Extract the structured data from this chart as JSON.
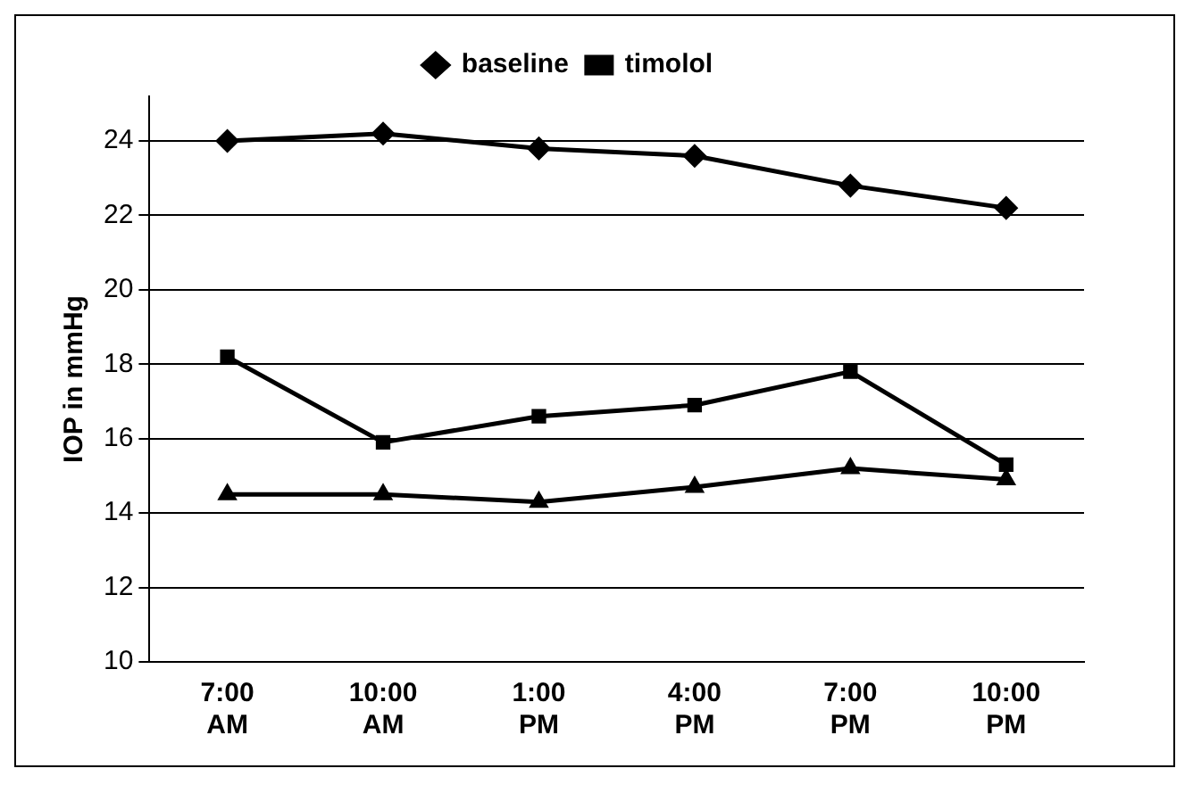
{
  "chart_data": {
    "type": "line",
    "ylabel": "IOP in mmHg",
    "categories": [
      "7:00 AM",
      "10:00 AM",
      "1:00 PM",
      "4:00 PM",
      "7:00 PM",
      "10:00 PM"
    ],
    "series": [
      {
        "name": "baseline",
        "color": "#000000",
        "marker": "diamond",
        "values": [
          24.0,
          24.2,
          23.8,
          23.6,
          22.8,
          22.2
        ]
      },
      {
        "name": "timolol",
        "color": "#000000",
        "marker": "square",
        "values": [
          18.2,
          15.9,
          16.6,
          16.9,
          17.8,
          15.3
        ]
      },
      {
        "color": "#000000",
        "marker": "triangle",
        "values": [
          14.5,
          14.5,
          14.3,
          14.7,
          15.2,
          14.9
        ]
      }
    ],
    "ylim": [
      10,
      25.2
    ],
    "yticks": [
      10,
      12,
      14,
      16,
      18,
      20,
      22,
      24
    ],
    "grid": "y",
    "legend": "top",
    "line_style": "solid"
  }
}
